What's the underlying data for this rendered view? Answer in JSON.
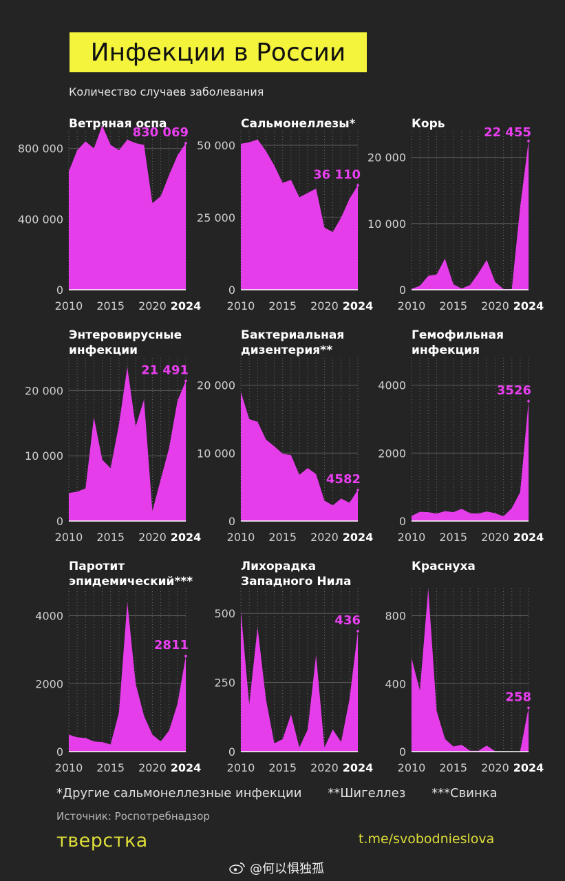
{
  "title": "Инфекции в России",
  "subtitle": "Количество случаев заболевания",
  "colors": {
    "area": "#e53dea",
    "label": "#e93ff0",
    "background": "#242424",
    "title_bg": "#f4f43c",
    "brand": "#dede3a"
  },
  "footnotes": [
    "*Другие сальмонеллезные инфекции",
    "**Шигеллез",
    "***Свинка"
  ],
  "source": "Источник: Роспотребнадзор",
  "logo": "тверстка",
  "telegram": "t.me/svobodnieslova",
  "watermark": "@何以惧独孤",
  "watermark_icon": "weibo-icon",
  "x_ticks": [
    "2010",
    "2015",
    "2020",
    "2024"
  ],
  "chart_data": [
    {
      "type": "area",
      "title": [
        "Ветряная оспа"
      ],
      "x": [
        2010,
        2011,
        2012,
        2013,
        2014,
        2015,
        2016,
        2017,
        2018,
        2019,
        2020,
        2021,
        2022,
        2023,
        2024
      ],
      "values": [
        670000,
        790000,
        840000,
        800000,
        930000,
        820000,
        790000,
        850000,
        830000,
        820000,
        490000,
        530000,
        650000,
        760000,
        830069
      ],
      "ylim": [
        0,
        900000
      ],
      "yticks": [
        0,
        400000,
        800000
      ],
      "ytick_labels": [
        "0",
        "400 000",
        "800 000"
      ],
      "annotation": "830 069"
    },
    {
      "type": "area",
      "title": [
        "Сальмонеллезы*"
      ],
      "x": [
        2010,
        2011,
        2012,
        2013,
        2014,
        2015,
        2016,
        2017,
        2018,
        2019,
        2020,
        2021,
        2022,
        2023,
        2024
      ],
      "values": [
        50500,
        51000,
        52000,
        48000,
        43000,
        37000,
        38000,
        32000,
        33500,
        35000,
        21500,
        20000,
        25000,
        31500,
        36110
      ],
      "ylim": [
        0,
        55000
      ],
      "yticks": [
        0,
        25000,
        50000
      ],
      "ytick_labels": [
        "0",
        "25 000",
        "50 000"
      ],
      "annotation": "36 110"
    },
    {
      "type": "area",
      "title": [
        "Корь"
      ],
      "x": [
        2010,
        2011,
        2012,
        2013,
        2014,
        2015,
        2016,
        2017,
        2018,
        2019,
        2020,
        2021,
        2022,
        2023,
        2024
      ],
      "values": [
        130,
        600,
        2100,
        2300,
        4700,
        850,
        180,
        720,
        2500,
        4500,
        1200,
        100,
        100,
        12500,
        22455
      ],
      "ylim": [
        0,
        24000
      ],
      "yticks": [
        0,
        10000,
        20000
      ],
      "ytick_labels": [
        "0",
        "10 000",
        "20 000"
      ],
      "annotation": "22 455"
    },
    {
      "type": "area",
      "title": [
        "Энтеровирусные",
        "инфекции"
      ],
      "x": [
        2010,
        2011,
        2012,
        2013,
        2014,
        2015,
        2016,
        2017,
        2018,
        2019,
        2020,
        2021,
        2022,
        2023,
        2024
      ],
      "values": [
        4300,
        4500,
        5000,
        15900,
        9400,
        8100,
        14800,
        23600,
        14500,
        18600,
        1500,
        6400,
        11200,
        18400,
        21491
      ],
      "ylim": [
        0,
        25000
      ],
      "yticks": [
        0,
        10000,
        20000
      ],
      "ytick_labels": [
        "0",
        "10 000",
        "20 000"
      ],
      "annotation": "21 491"
    },
    {
      "type": "area",
      "title": [
        "Бактериальная",
        "дизентерия**"
      ],
      "x": [
        2010,
        2011,
        2012,
        2013,
        2014,
        2015,
        2016,
        2017,
        2018,
        2019,
        2020,
        2021,
        2022,
        2023,
        2024
      ],
      "values": [
        19000,
        15000,
        14600,
        12000,
        11000,
        9900,
        9700,
        6800,
        7800,
        6900,
        3000,
        2300,
        3300,
        2700,
        4582
      ],
      "ylim": [
        0,
        24000
      ],
      "yticks": [
        0,
        10000,
        20000
      ],
      "ytick_labels": [
        "0",
        "10 000",
        "20 000"
      ],
      "annotation": "4582"
    },
    {
      "type": "area",
      "title": [
        "Гемофильная",
        "инфекция"
      ],
      "x": [
        2010,
        2011,
        2012,
        2013,
        2014,
        2015,
        2016,
        2017,
        2018,
        2019,
        2020,
        2021,
        2022,
        2023,
        2024
      ],
      "values": [
        150,
        270,
        260,
        220,
        290,
        260,
        360,
        230,
        220,
        280,
        230,
        140,
        380,
        850,
        3526
      ],
      "ylim": [
        0,
        4800
      ],
      "yticks": [
        0,
        2000,
        4000
      ],
      "ytick_labels": [
        "0",
        "2000",
        "4000"
      ],
      "annotation": "3526"
    },
    {
      "type": "area",
      "title": [
        "Паротит",
        "эпидемический***"
      ],
      "x": [
        2010,
        2011,
        2012,
        2013,
        2014,
        2015,
        2016,
        2017,
        2018,
        2019,
        2020,
        2021,
        2022,
        2023,
        2024
      ],
      "values": [
        500,
        420,
        400,
        300,
        280,
        210,
        1150,
        4400,
        2000,
        1050,
        500,
        300,
        620,
        1400,
        2811
      ],
      "ylim": [
        0,
        4800
      ],
      "yticks": [
        0,
        2000,
        4000
      ],
      "ytick_labels": [
        "0",
        "2000",
        "4000"
      ],
      "annotation": "2811"
    },
    {
      "type": "area",
      "title": [
        "Лихорадка",
        "Западного Нила"
      ],
      "x": [
        2010,
        2011,
        2012,
        2013,
        2014,
        2015,
        2016,
        2017,
        2018,
        2019,
        2020,
        2021,
        2022,
        2023,
        2024
      ],
      "values": [
        510,
        170,
        450,
        190,
        30,
        45,
        135,
        15,
        80,
        350,
        15,
        80,
        35,
        190,
        436
      ],
      "ylim": [
        0,
        590
      ],
      "yticks": [
        0,
        250,
        500
      ],
      "ytick_labels": [
        "0",
        "250",
        "500"
      ],
      "annotation": "436"
    },
    {
      "type": "area",
      "title": [
        "Краснуха"
      ],
      "x": [
        2010,
        2011,
        2012,
        2013,
        2014,
        2015,
        2016,
        2017,
        2018,
        2019,
        2020,
        2021,
        2022,
        2023,
        2024
      ],
      "values": [
        550,
        360,
        960,
        240,
        75,
        30,
        40,
        5,
        5,
        35,
        3,
        2,
        2,
        2,
        258
      ],
      "ylim": [
        0,
        960
      ],
      "yticks": [
        0,
        400,
        800
      ],
      "ytick_labels": [
        "0",
        "400",
        "800"
      ],
      "annotation": "258"
    }
  ]
}
